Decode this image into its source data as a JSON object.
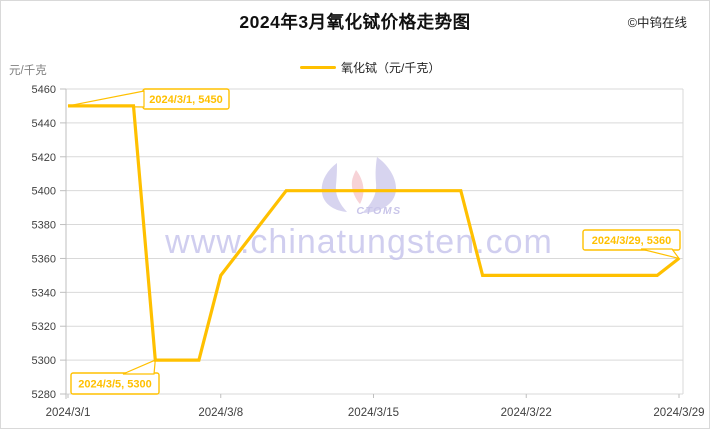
{
  "header": {
    "title": "2024年3月氧化铽价格走势图",
    "copyright": "©中钨在线"
  },
  "colors": {
    "accent": "#FFC000",
    "grid": "#D9D9D9",
    "axis": "#BFBFBF",
    "tick_text": "#404040",
    "unit_text": "#7F7F7F",
    "watermark_text": "#C5C3EC",
    "watermark_petal": "#9D96D8",
    "watermark_pink": "#EC9AA2"
  },
  "watermark": {
    "text": "www.chinatungsten.com",
    "logo_caption": "CTOMS"
  },
  "chart_data": {
    "type": "line",
    "title": "2024年3月氧化铽价格走势图",
    "y_unit": "元/千克",
    "legend": [
      {
        "label": "氧化铽（元/千克）",
        "color": "#FFC000"
      }
    ],
    "legend_position": "top-center",
    "grid": true,
    "ylim": [
      5280,
      5460
    ],
    "y_step": 20,
    "y_ticks": [
      5460,
      5440,
      5420,
      5400,
      5380,
      5360,
      5340,
      5320,
      5300,
      5280
    ],
    "x_ticks": [
      "2024/3/1",
      "2024/3/8",
      "2024/3/15",
      "2024/3/22",
      "2024/3/29"
    ],
    "x_domain_days": [
      1,
      29
    ],
    "series": [
      {
        "name": "氧化铽",
        "color": "#FFC000",
        "points": [
          [
            "2024/3/1",
            5450
          ],
          [
            "2024/3/4",
            5450
          ],
          [
            "2024/3/5",
            5300
          ],
          [
            "2024/3/7",
            5300
          ],
          [
            "2024/3/8",
            5350
          ],
          [
            "2024/3/11",
            5400
          ],
          [
            "2024/3/19",
            5400
          ],
          [
            "2024/3/20",
            5350
          ],
          [
            "2024/3/28",
            5350
          ],
          [
            "2024/3/29",
            5360
          ]
        ]
      }
    ],
    "annotations": [
      {
        "label": "2024/3/1, 5450",
        "date": "2024/3/1",
        "value": 5450
      },
      {
        "label": "2024/3/5, 5300",
        "date": "2024/3/5",
        "value": 5300
      },
      {
        "label": "2024/3/29, 5360",
        "date": "2024/3/29",
        "value": 5360
      }
    ]
  }
}
